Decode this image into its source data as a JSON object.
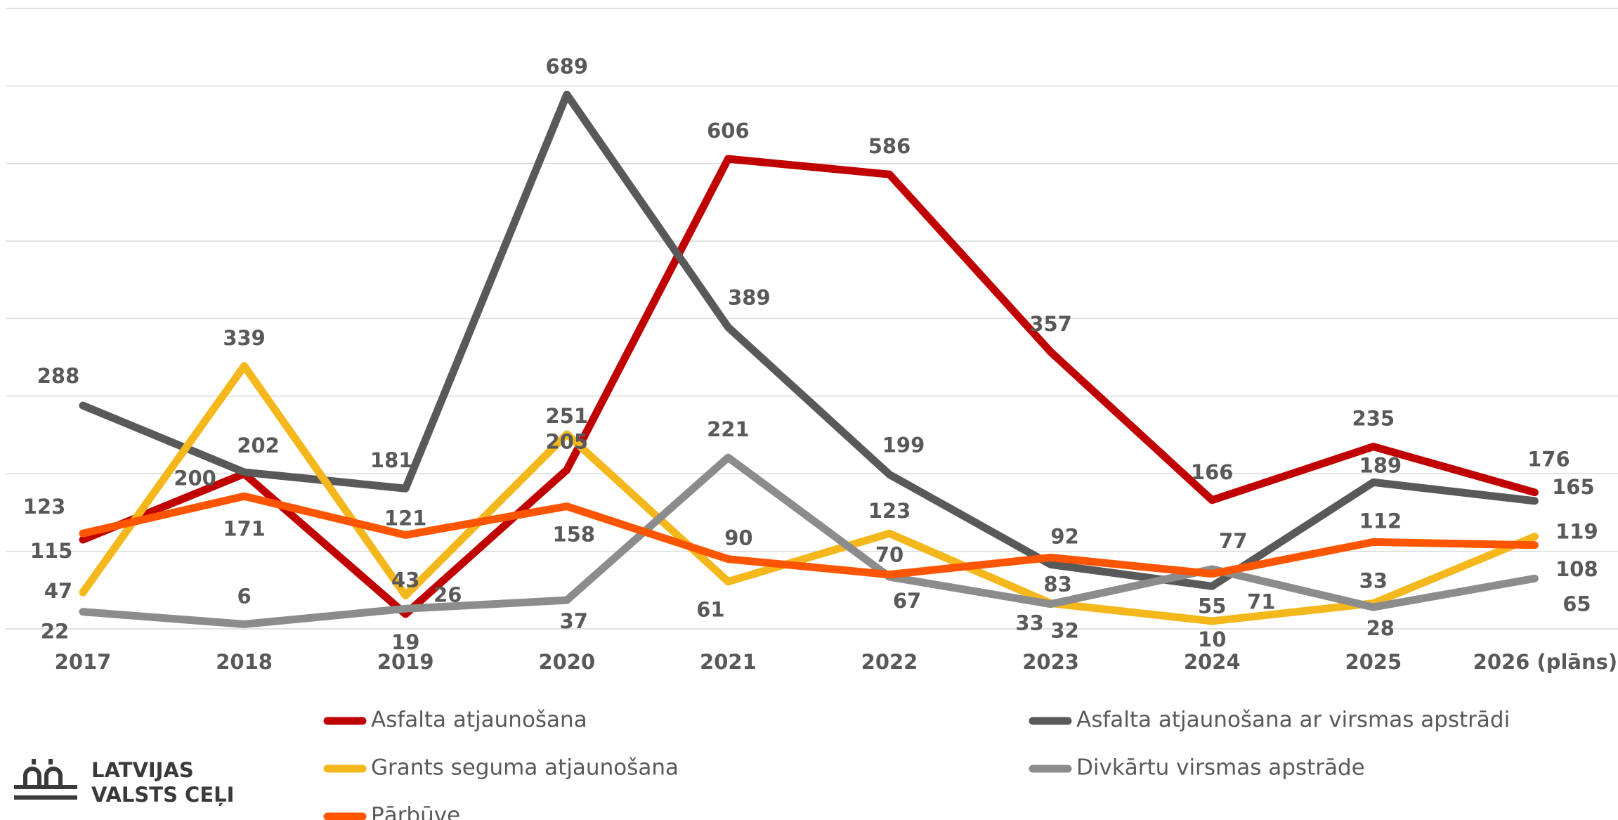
{
  "chart_data": {
    "type": "line",
    "categories": [
      "2017",
      "2018",
      "2019",
      "2020",
      "2021",
      "2022",
      "2023",
      "2024",
      "2025",
      "2026 (plāns)"
    ],
    "series": [
      {
        "name": "Asfalta atjaunošana",
        "color": "#c00000",
        "values": [
          115,
          200,
          19,
          205,
          606,
          586,
          357,
          166,
          235,
          176
        ]
      },
      {
        "name": "Asfalta atjaunošana ar virsmas apstrādi",
        "color": "#595959",
        "values": [
          288,
          202,
          181,
          689,
          389,
          199,
          83,
          55,
          189,
          165
        ]
      },
      {
        "name": "Grants seguma atjaunošana",
        "color": "#f5b81c",
        "values": [
          47,
          339,
          43,
          251,
          61,
          123,
          33,
          10,
          33,
          119
        ]
      },
      {
        "name": "Divkārtu virsmas apstrāde",
        "color": "#8c8c8c",
        "values": [
          22,
          6,
          26,
          37,
          221,
          67,
          32,
          77,
          28,
          65
        ]
      },
      {
        "name": "Pārbūve",
        "color": "#ff5500",
        "values": [
          123,
          171,
          121,
          158,
          90,
          70,
          92,
          71,
          112,
          108
        ]
      }
    ],
    "ylim": [
      0,
      800
    ],
    "yticks": [
      0,
      100,
      200,
      300,
      400,
      500,
      600,
      700,
      800
    ],
    "grid": true
  },
  "logo": {
    "line1": "LATVIJAS",
    "line2": "VALSTS CEĻI"
  }
}
